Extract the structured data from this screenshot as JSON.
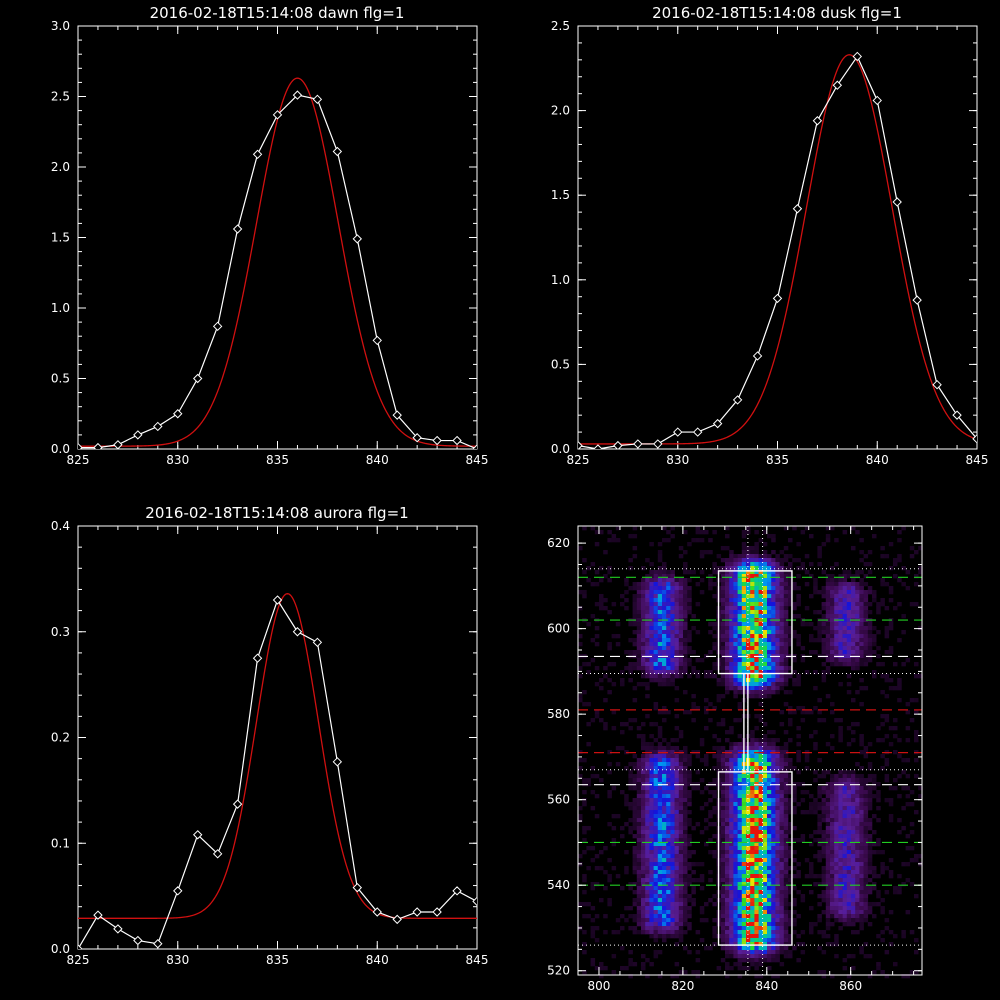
{
  "colors": {
    "background": "#000000",
    "axes": "#ffffff",
    "measured": "#ffffff",
    "fit": "#d01010",
    "green_line": "#22cc22",
    "red_line": "#cc1111",
    "white_dash": "#ffffff"
  },
  "chart_data": [
    {
      "type": "line",
      "title": "2016-02-18T15:14:08 dawn flg=1",
      "xlabel": "",
      "ylabel": "",
      "xlim": [
        825,
        845
      ],
      "ylim": [
        0,
        3.0
      ],
      "xticks": [
        825,
        830,
        835,
        840,
        845
      ],
      "xtick_labels": [
        "825",
        "830",
        "835",
        "840",
        "845"
      ],
      "yticks": [
        0,
        0.5,
        1.0,
        1.5,
        2.0,
        2.5,
        3.0
      ],
      "ytick_labels": [
        "0.0",
        "0.5",
        "1.0",
        "1.5",
        "2.0",
        "2.5",
        "3.0"
      ],
      "series": [
        {
          "style": "white line with diamond markers",
          "x": [
            825,
            826,
            827,
            828,
            829,
            830,
            831,
            832,
            833,
            834,
            835,
            836,
            837,
            838,
            839,
            840,
            841,
            842,
            843,
            844,
            845
          ],
          "y": [
            0.01,
            0.01,
            0.03,
            0.1,
            0.16,
            0.25,
            0.5,
            0.87,
            1.56,
            2.09,
            2.37,
            2.51,
            2.48,
            2.11,
            1.49,
            0.77,
            0.24,
            0.08,
            0.06,
            0.06,
            0.0
          ]
        },
        {
          "style": "red gaussian fit",
          "amplitude": 2.61,
          "center": 836.0,
          "sigma": 2.05,
          "offset": 0.02
        }
      ]
    },
    {
      "type": "line",
      "title": "2016-02-18T15:14:08 dusk flg=1",
      "xlabel": "",
      "ylabel": "",
      "xlim": [
        825,
        845
      ],
      "ylim": [
        0,
        2.5
      ],
      "xticks": [
        825,
        830,
        835,
        840,
        845
      ],
      "xtick_labels": [
        "825",
        "830",
        "835",
        "840",
        "845"
      ],
      "yticks": [
        0,
        0.5,
        1.0,
        1.5,
        2.0,
        2.5
      ],
      "ytick_labels": [
        "0.0",
        "0.5",
        "1.0",
        "1.5",
        "2.0",
        "2.5"
      ],
      "series": [
        {
          "style": "white line with diamond markers",
          "x": [
            825,
            826,
            827,
            828,
            829,
            830,
            831,
            832,
            833,
            834,
            835,
            836,
            837,
            838,
            839,
            840,
            841,
            842,
            843,
            844,
            845
          ],
          "y": [
            0.02,
            0.0,
            0.02,
            0.03,
            0.03,
            0.1,
            0.1,
            0.15,
            0.29,
            0.55,
            0.89,
            1.42,
            1.94,
            2.15,
            2.32,
            2.06,
            1.46,
            0.88,
            0.38,
            0.2,
            0.06
          ]
        },
        {
          "style": "red gaussian fit",
          "amplitude": 2.3,
          "center": 838.6,
          "sigma": 2.15,
          "offset": 0.03
        }
      ]
    },
    {
      "type": "line",
      "title": "2016-02-18T15:14:08 aurora flg=1",
      "xlabel": "",
      "ylabel": "",
      "xlim": [
        825,
        845
      ],
      "ylim": [
        0,
        0.4
      ],
      "xticks": [
        825,
        830,
        835,
        840,
        845
      ],
      "xtick_labels": [
        "825",
        "830",
        "835",
        "840",
        "845"
      ],
      "yticks": [
        0,
        0.1,
        0.2,
        0.3,
        0.4
      ],
      "ytick_labels": [
        "0.0",
        "0.1",
        "0.2",
        "0.3",
        "0.4"
      ],
      "series": [
        {
          "style": "white line with diamond markers",
          "x": [
            825,
            826,
            827,
            828,
            829,
            830,
            831,
            832,
            833,
            834,
            835,
            836,
            837,
            838,
            839,
            840,
            841,
            842,
            843,
            844,
            845
          ],
          "y": [
            0.0,
            0.032,
            0.019,
            0.008,
            0.005,
            0.055,
            0.108,
            0.09,
            0.137,
            0.275,
            0.33,
            0.3,
            0.29,
            0.177,
            0.058,
            0.035,
            0.028,
            0.035,
            0.035,
            0.055,
            0.045
          ]
        },
        {
          "style": "red gaussian fit",
          "amplitude": 0.307,
          "center": 835.5,
          "sigma": 1.55,
          "offset": 0.029
        }
      ]
    },
    {
      "type": "heatmap",
      "xlim": [
        795,
        877
      ],
      "ylim": [
        519,
        624
      ],
      "xticks": [
        800,
        820,
        840,
        860
      ],
      "xtick_labels": [
        "800",
        "820",
        "840",
        "860"
      ],
      "yticks": [
        520,
        540,
        560,
        580,
        600,
        620
      ],
      "ytick_labels": [
        "520",
        "540",
        "560",
        "580",
        "600",
        "620"
      ],
      "colormap": "rainbow (purple-blue-cyan-green-yellow-red)",
      "emission_columns": [
        {
          "x_center": 815,
          "x_width": 5,
          "y_ranges": [
            [
              592,
              609
            ],
            [
              532,
              568
            ]
          ],
          "peak": 0.5
        },
        {
          "x_center": 837,
          "x_width": 6,
          "y_ranges": [
            [
              589,
              613
            ],
            [
              527,
              569
            ]
          ],
          "peak": 1.0
        },
        {
          "x_center": 859,
          "x_width": 5,
          "y_ranges": [
            [
              595,
              608
            ],
            [
              535,
              562
            ]
          ],
          "peak": 0.3
        }
      ],
      "boxes": [
        {
          "x": [
            828.5,
            846
          ],
          "y": [
            589.5,
            613.5
          ]
        },
        {
          "x": [
            828.5,
            846
          ],
          "y": [
            526,
            566.5
          ]
        }
      ],
      "vertical_dotted_lines_x": [
        835.5,
        839
      ],
      "horizontal_lines": [
        {
          "y": 612,
          "style": "green dashed"
        },
        {
          "y": 602,
          "style": "green dashed"
        },
        {
          "y": 593.5,
          "style": "white dashed"
        },
        {
          "y": 581,
          "style": "red dashed"
        },
        {
          "y": 571,
          "style": "red dashed"
        },
        {
          "y": 563.5,
          "style": "white dashed"
        },
        {
          "y": 550,
          "style": "green dashed"
        },
        {
          "y": 540,
          "style": "green dashed"
        },
        {
          "y": 614,
          "style": "white dotted"
        },
        {
          "y": 589.5,
          "style": "white dotted"
        },
        {
          "y": 567,
          "style": "white dotted"
        },
        {
          "y": 526,
          "style": "white dotted"
        }
      ]
    }
  ]
}
